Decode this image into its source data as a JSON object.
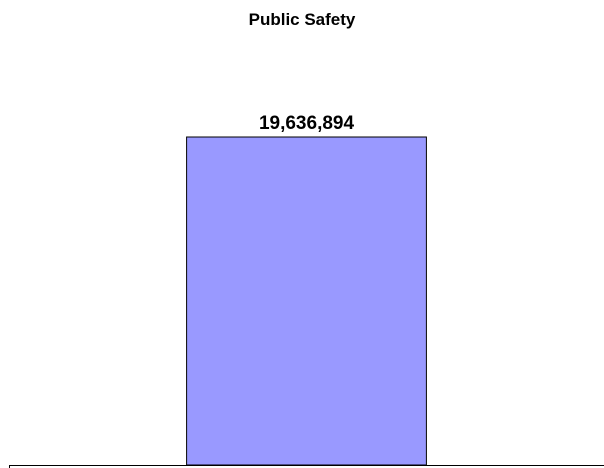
{
  "title": "Public Safety",
  "colors": {
    "bar_fill": "#9999ff",
    "bar_stroke": "#000000",
    "axis": "#000000",
    "background": "#ffffff"
  },
  "chart_data": {
    "type": "bar",
    "title": "Public Safety",
    "categories": [
      ""
    ],
    "series": [
      {
        "values": [
          19636894
        ]
      }
    ],
    "data_labels": [
      "19,636,894"
    ],
    "ylim": [
      0,
      19636894
    ],
    "grid": false,
    "legend": "none"
  }
}
